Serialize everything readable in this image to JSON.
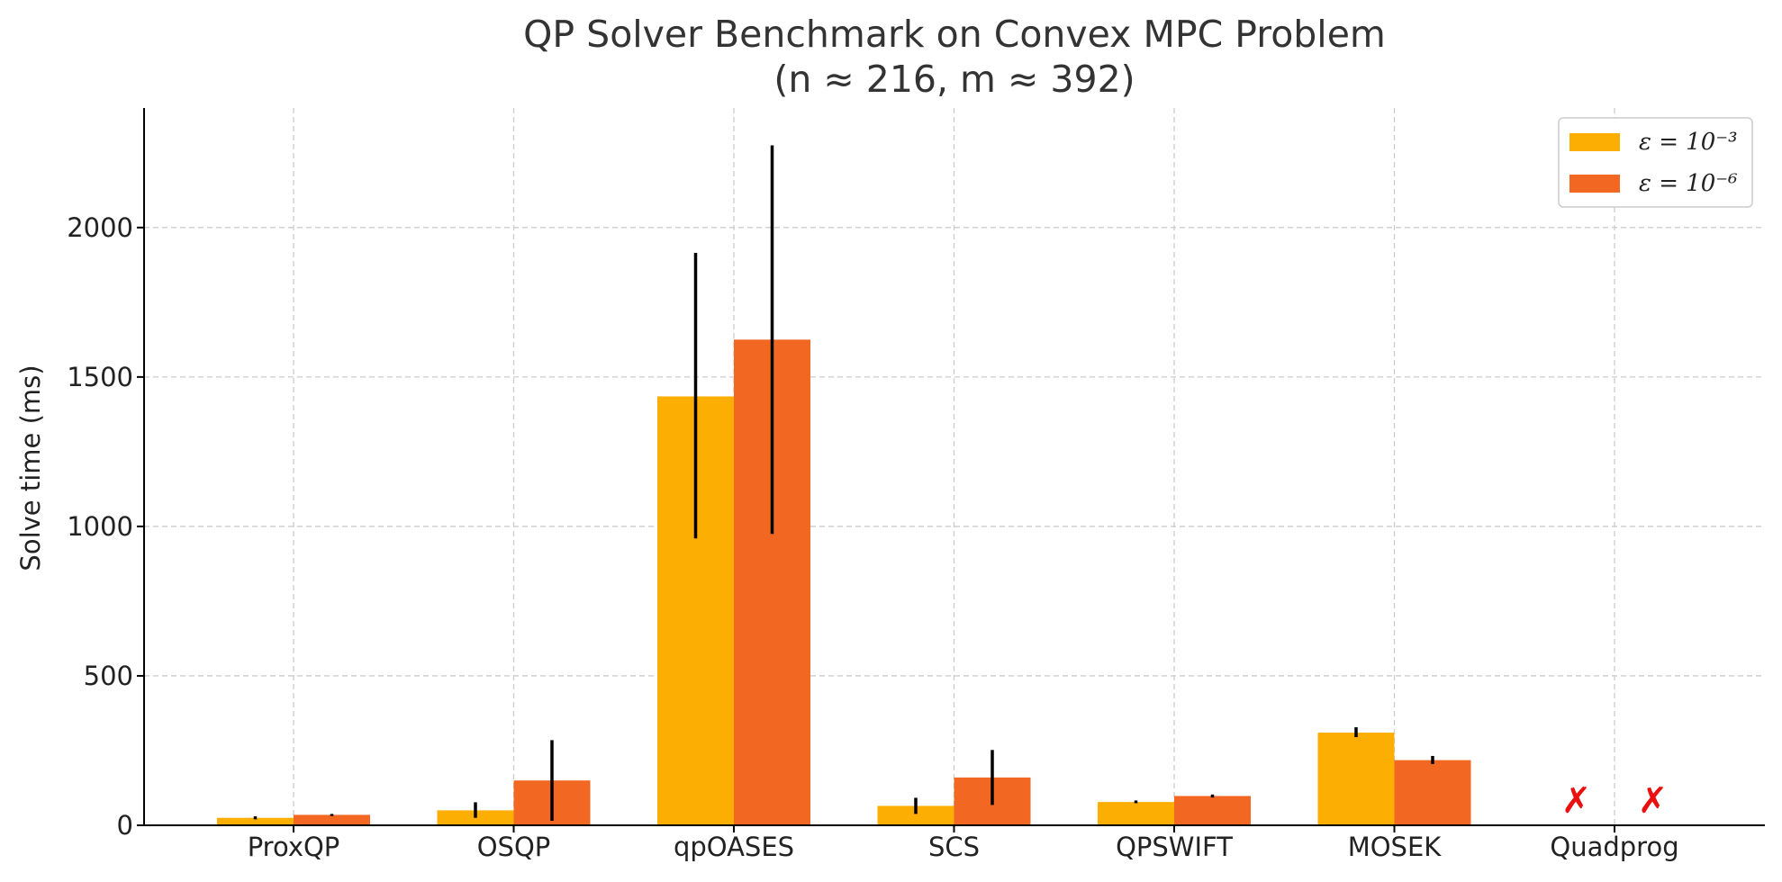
{
  "chart_data": {
    "type": "bar",
    "title": "QP Solver Benchmark on Convex MPC Problem",
    "subtitle": "(n ≈ 216, m ≈ 392)",
    "xlabel": "",
    "ylabel": "Solve time (ms)",
    "ylim": [
      0,
      2400
    ],
    "yticks": [
      0,
      500,
      1000,
      1500,
      2000
    ],
    "grid": true,
    "legend_position": "top-right",
    "categories": [
      "ProxQP",
      "OSQP",
      "qpOASES",
      "SCS",
      "QPSWIFT",
      "MOSEK",
      "Quadprog"
    ],
    "series": [
      {
        "name": "ε = 10⁻³",
        "color": "#fdae03",
        "values": [
          25,
          50,
          1435,
          65,
          78,
          310,
          null
        ],
        "error_low": [
          20,
          25,
          960,
          38,
          74,
          295,
          null
        ],
        "error_high": [
          30,
          77,
          1915,
          92,
          83,
          328,
          null
        ]
      },
      {
        "name": "ε = 10⁻⁶",
        "color": "#f26822",
        "values": [
          35,
          150,
          1625,
          160,
          98,
          218,
          null
        ],
        "error_low": [
          31,
          15,
          975,
          68,
          93,
          205,
          null
        ],
        "error_high": [
          38,
          285,
          2275,
          252,
          103,
          232,
          null
        ]
      }
    ],
    "failed_marker": "✗",
    "failed_color": "#e8110f"
  }
}
